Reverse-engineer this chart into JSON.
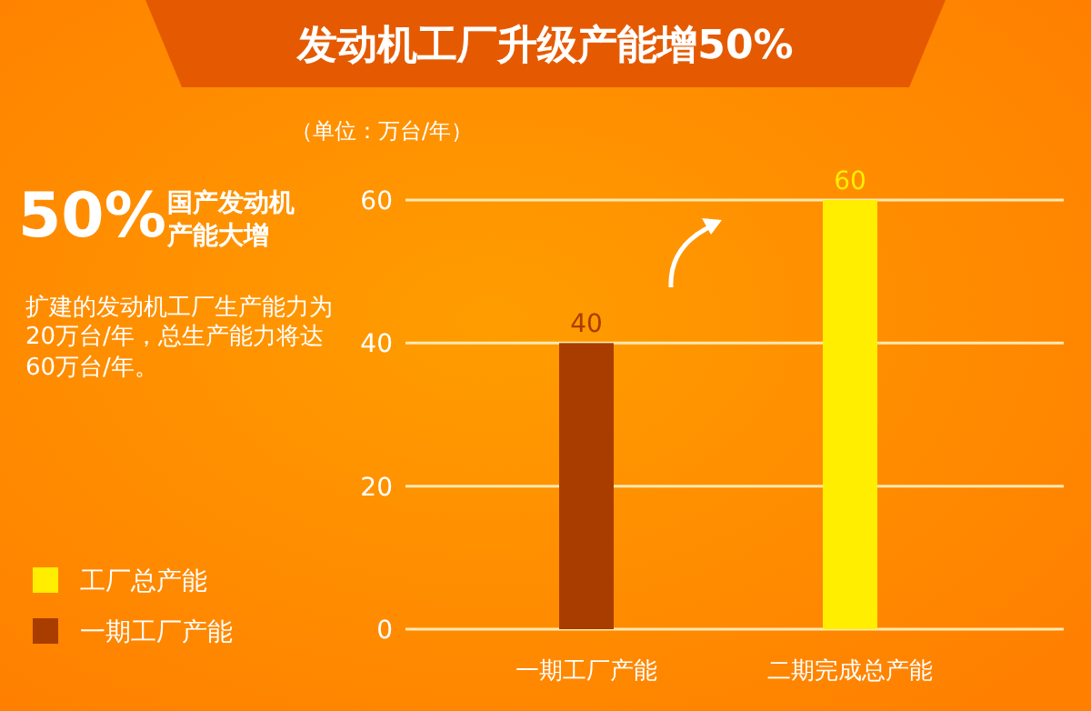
{
  "chart_data": {
    "type": "bar",
    "title": "发动机工厂升级产能增50%",
    "subtitle": "（单位：万台/年）",
    "categories": [
      "一期工厂产能",
      "二期完成总产能"
    ],
    "series": [
      {
        "name": "工厂总产能",
        "color": "#ffee00",
        "values": [
          null,
          60
        ]
      },
      {
        "name": "一期工厂产能",
        "color": "#a93d00",
        "values": [
          40,
          null
        ]
      }
    ],
    "ylim": [
      0,
      60
    ],
    "yticks": [
      0,
      20,
      40,
      60
    ],
    "grid": "y",
    "data_labels": true,
    "legend": "left",
    "annotations": [
      "50%",
      "国产发动机产能大增",
      "扩建的发动机工厂生产能力为20万台/年，总生产能力将达60万台/年。"
    ]
  }
}
